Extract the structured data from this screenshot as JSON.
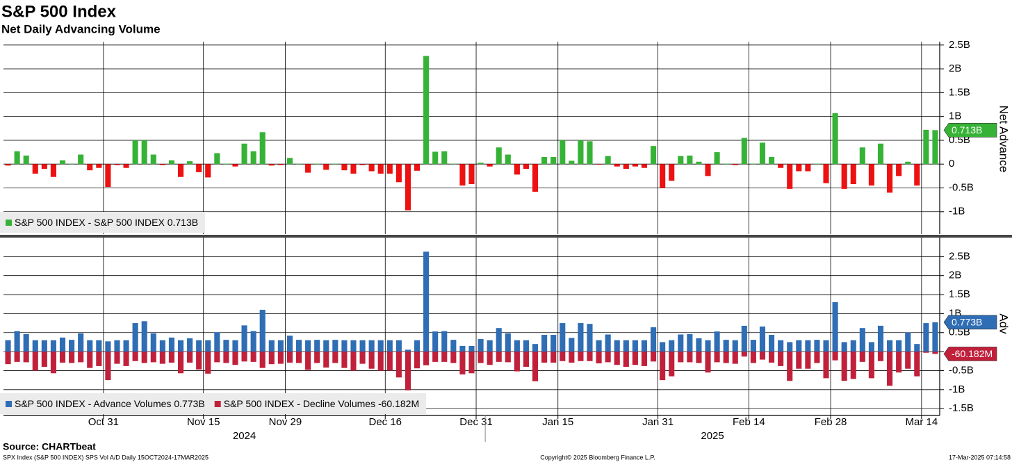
{
  "chart_data": [
    {
      "type": "bar",
      "title": "S&P 500 Index",
      "subtitle": "Net Daily Advancing Volume",
      "y_label": "Net Advance",
      "ylim": [
        -1.47,
        2.57
      ],
      "yticks": [
        {
          "value": 2.5,
          "label": "2.5B"
        },
        {
          "value": 2,
          "label": "2B"
        },
        {
          "value": 1.5,
          "label": "1.5B"
        },
        {
          "value": 1,
          "label": "1B"
        },
        {
          "value": 0.5,
          "label": "0.5B"
        },
        0,
        {
          "value": -0.5,
          "label": "-0.5B"
        },
        {
          "value": -1,
          "label": "-1B"
        }
      ],
      "grid": true,
      "series": [
        {
          "name": "S&P 500 INDEX - S&P 500 INDEX",
          "color": "#36b336",
          "negative_color": "#ee1111",
          "values": [
            -0.03,
            0.27,
            0.18,
            -0.2,
            -0.1,
            -0.27,
            0.08,
            0.01,
            0.2,
            -0.13,
            -0.08,
            -0.48,
            -0.02,
            -0.08,
            0.5,
            0.5,
            0.2,
            -0.02,
            0.08,
            -0.27,
            0.06,
            -0.17,
            -0.28,
            0.23,
            0.01,
            -0.05,
            0.43,
            0.27,
            0.67,
            -0.03,
            -0.02,
            0.13,
            0.01,
            -0.18,
            0.01,
            -0.12,
            0.01,
            -0.13,
            -0.2,
            -0.02,
            -0.15,
            -0.2,
            -0.2,
            -0.38,
            -0.97,
            -0.14,
            2.27,
            0.26,
            0.27,
            0.01,
            -0.45,
            -0.42,
            0.03,
            -0.05,
            0.35,
            0.2,
            -0.22,
            -0.1,
            -0.58,
            0.15,
            0.15,
            0.5,
            0.07,
            0.5,
            0.48,
            -0.01,
            0.17,
            -0.05,
            -0.1,
            -0.05,
            -0.08,
            0.38,
            -0.5,
            -0.35,
            0.17,
            0.18,
            0.05,
            -0.25,
            0.25,
            0.01,
            -0.02,
            0.55,
            0.01,
            0.45,
            0.15,
            -0.08,
            -0.52,
            -0.15,
            -0.15,
            0.01,
            -0.4,
            1.07,
            -0.52,
            -0.42,
            0.35,
            -0.45,
            0.43,
            -0.6,
            -0.25,
            0.05,
            -0.45,
            0.72,
            0.713
          ],
          "value_labels": {
            "102": "0.713B"
          }
        }
      ]
    },
    {
      "type": "bar",
      "y_label": "Adv",
      "ylim": [
        -1.68,
        3.0
      ],
      "yticks": [
        {
          "value": 2.5,
          "label": "2.5B"
        },
        {
          "value": 2,
          "label": "2B"
        },
        {
          "value": 1.5,
          "label": "1.5B"
        },
        {
          "value": 1,
          "label": "1B"
        },
        {
          "value": 0.5,
          "label": "0.5B"
        },
        0,
        {
          "value": -0.5,
          "label": "-0.5B"
        },
        {
          "value": -1,
          "label": "-1B"
        },
        {
          "value": -1.5,
          "label": "-1.5B"
        }
      ],
      "grid": true,
      "categories": [
        "2024-10-16",
        "2024-10-17",
        "2024-10-18",
        "2024-10-21",
        "2024-10-22",
        "2024-10-23",
        "2024-10-24",
        "2024-10-25",
        "2024-10-28",
        "2024-10-29",
        "2024-10-30",
        "2024-10-31",
        "2024-11-01",
        "2024-11-04",
        "2024-11-05",
        "2024-11-06",
        "2024-11-07",
        "2024-11-08",
        "2024-11-11",
        "2024-11-12",
        "2024-11-13",
        "2024-11-14",
        "2024-11-15",
        "2024-11-18",
        "2024-11-19",
        "2024-11-20",
        "2024-11-21",
        "2024-11-22",
        "2024-11-25",
        "2024-11-26",
        "2024-11-27",
        "2024-11-29",
        "2024-12-02",
        "2024-12-03",
        "2024-12-04",
        "2024-12-05",
        "2024-12-06",
        "2024-12-09",
        "2024-12-10",
        "2024-12-11",
        "2024-12-12",
        "2024-12-13",
        "2024-12-16",
        "2024-12-17",
        "2024-12-18",
        "2024-12-19",
        "2024-12-20",
        "2024-12-23",
        "2024-12-24",
        "2024-12-26",
        "2024-12-27",
        "2024-12-30",
        "2024-12-31",
        "2025-01-02",
        "2025-01-03",
        "2025-01-06",
        "2025-01-07",
        "2025-01-08",
        "2025-01-10",
        "2025-01-13",
        "2025-01-14",
        "2025-01-15",
        "2025-01-16",
        "2025-01-17",
        "2025-01-21",
        "2025-01-22",
        "2025-01-23",
        "2025-01-24",
        "2025-01-27",
        "2025-01-28",
        "2025-01-29",
        "2025-01-30",
        "2025-01-31",
        "2025-02-03",
        "2025-02-04",
        "2025-02-05",
        "2025-02-06",
        "2025-02-07",
        "2025-02-10",
        "2025-02-11",
        "2025-02-12",
        "2025-02-13",
        "2025-02-14",
        "2025-02-18",
        "2025-02-19",
        "2025-02-20",
        "2025-02-21",
        "2025-02-24",
        "2025-02-25",
        "2025-02-26",
        "2025-02-27",
        "2025-02-28",
        "2025-03-03",
        "2025-03-04",
        "2025-03-05",
        "2025-03-06",
        "2025-03-07",
        "2025-03-10",
        "2025-03-11",
        "2025-03-12",
        "2025-03-13",
        "2025-03-14",
        "2025-03-17"
      ],
      "xticks": [
        {
          "value": "2024-10-31",
          "label": "Oct 31"
        },
        {
          "value": "2024-11-15",
          "label": "Nov 15"
        },
        {
          "value": "2024-11-29",
          "label": "Nov 29"
        },
        {
          "value": "2024-12-16",
          "label": "Dec 16"
        },
        {
          "value": "2024-12-31",
          "label": "Dec 31"
        },
        {
          "value": "2025-01-15",
          "label": "Jan 15"
        },
        {
          "value": "2025-01-31",
          "label": "Jan 31"
        },
        {
          "value": "2025-02-14",
          "label": "Feb 14"
        },
        {
          "value": "2025-02-28",
          "label": "Feb 28"
        },
        {
          "value": "2025-03-14",
          "label": "Mar 14"
        }
      ],
      "year_labels": [
        "2024",
        "2025"
      ],
      "series": [
        {
          "name": "S&P 500 INDEX - Advance Volumes",
          "color": "#2f6db5",
          "values": [
            0.3,
            0.54,
            0.46,
            0.3,
            0.3,
            0.3,
            0.37,
            0.31,
            0.48,
            0.3,
            0.3,
            0.27,
            0.3,
            0.3,
            0.75,
            0.8,
            0.48,
            0.3,
            0.37,
            0.3,
            0.35,
            0.3,
            0.3,
            0.51,
            0.31,
            0.3,
            0.69,
            0.54,
            1.1,
            0.3,
            0.3,
            0.42,
            0.31,
            0.3,
            0.31,
            0.3,
            0.31,
            0.3,
            0.3,
            0.3,
            0.3,
            0.3,
            0.3,
            0.3,
            0.05,
            0.3,
            2.63,
            0.53,
            0.54,
            0.31,
            0.15,
            0.15,
            0.33,
            0.3,
            0.62,
            0.48,
            0.3,
            0.3,
            0.2,
            0.44,
            0.44,
            0.75,
            0.36,
            0.75,
            0.73,
            0.3,
            0.45,
            0.3,
            0.3,
            0.3,
            0.3,
            0.64,
            0.25,
            0.3,
            0.45,
            0.46,
            0.35,
            0.3,
            0.53,
            0.31,
            0.3,
            0.68,
            0.31,
            0.66,
            0.44,
            0.3,
            0.25,
            0.3,
            0.3,
            0.31,
            0.3,
            1.3,
            0.25,
            0.3,
            0.62,
            0.25,
            0.68,
            0.3,
            0.3,
            0.5,
            0.2,
            0.75,
            0.773
          ],
          "value_labels": {
            "102": "0.773B"
          }
        },
        {
          "name": "S&P 500 INDEX - Decline Volumes",
          "color": "#c1203b",
          "values": [
            -0.33,
            -0.27,
            -0.28,
            -0.5,
            -0.4,
            -0.57,
            -0.29,
            -0.3,
            -0.28,
            -0.43,
            -0.38,
            -0.75,
            -0.32,
            -0.38,
            -0.25,
            -0.3,
            -0.28,
            -0.32,
            -0.29,
            -0.57,
            -0.29,
            -0.47,
            -0.58,
            -0.28,
            -0.3,
            -0.35,
            -0.26,
            -0.27,
            -0.43,
            -0.33,
            -0.32,
            -0.29,
            -0.3,
            -0.48,
            -0.3,
            -0.42,
            -0.3,
            -0.43,
            -0.5,
            -0.32,
            -0.45,
            -0.5,
            -0.5,
            -0.68,
            -1.02,
            -0.44,
            -0.36,
            -0.27,
            -0.27,
            -0.3,
            -0.6,
            -0.57,
            -0.3,
            -0.35,
            -0.27,
            -0.28,
            -0.52,
            -0.4,
            -0.78,
            -0.29,
            -0.29,
            -0.25,
            -0.29,
            -0.25,
            -0.25,
            -0.31,
            -0.28,
            -0.35,
            -0.4,
            -0.35,
            -0.38,
            -0.26,
            -0.75,
            -0.65,
            -0.28,
            -0.28,
            -0.3,
            -0.55,
            -0.28,
            -0.3,
            -0.32,
            -0.13,
            -0.3,
            -0.21,
            -0.29,
            -0.38,
            -0.77,
            -0.45,
            -0.45,
            -0.3,
            -0.7,
            -0.23,
            -0.77,
            -0.72,
            -0.27,
            -0.7,
            -0.25,
            -0.9,
            -0.55,
            -0.45,
            -0.65,
            -0.03,
            -0.060182
          ],
          "value_labels": {
            "102": "-60.182M"
          }
        }
      ]
    }
  ],
  "footer": {
    "source": "Source: CHARTbeat",
    "left": "SPX Index (S&P 500 INDEX) SPS Vol A/D  Daily 15OCT2024-17MAR2025",
    "center": "Copyright© 2025 Bloomberg Finance L.P.",
    "right": "17-Mar-2025 07:14:58"
  }
}
